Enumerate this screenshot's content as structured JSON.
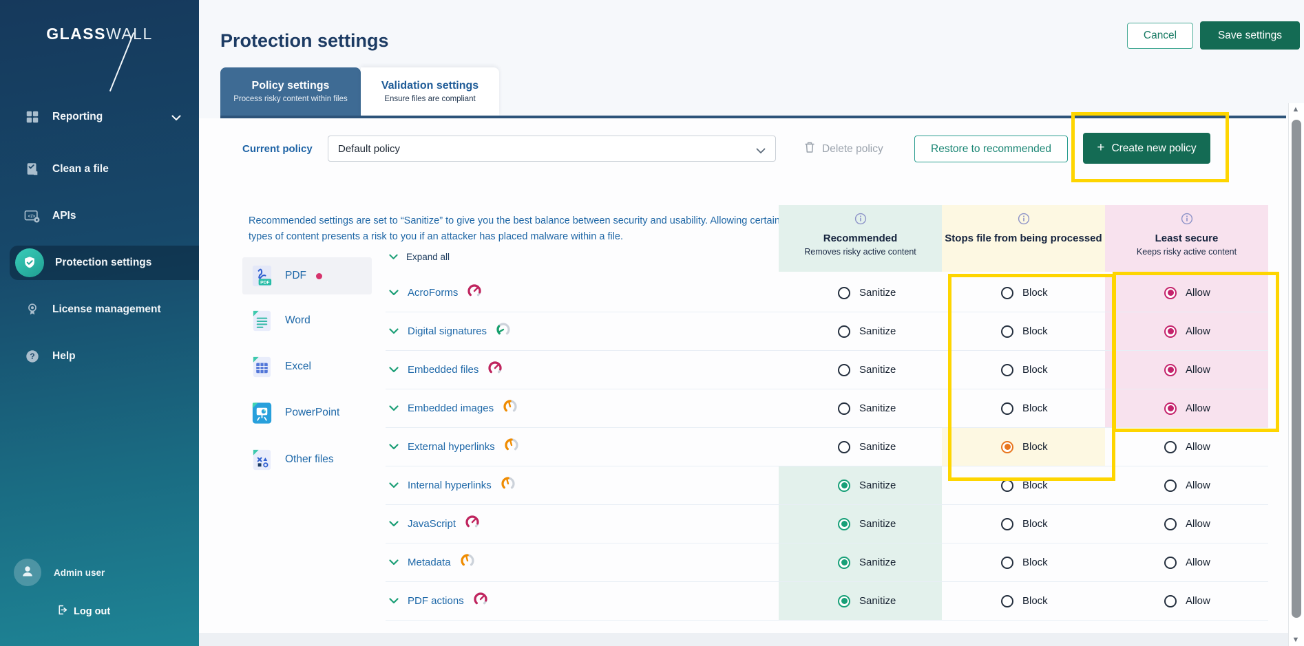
{
  "sidebar": {
    "logo": {
      "part_bold": "GLASS",
      "part_light": "WALL"
    },
    "items": [
      {
        "label": "Reporting",
        "icon": "grid-icon",
        "expandable": true,
        "active": false
      },
      {
        "label": "Clean a file",
        "icon": "clean-file-icon",
        "expandable": false,
        "active": false
      },
      {
        "label": "APIs",
        "icon": "api-icon",
        "expandable": false,
        "active": false
      },
      {
        "label": "Protection settings",
        "icon": "shield-icon",
        "expandable": false,
        "active": true
      },
      {
        "label": "License management",
        "icon": "license-icon",
        "expandable": false,
        "active": false
      },
      {
        "label": "Help",
        "icon": "help-icon",
        "expandable": false,
        "active": false
      }
    ],
    "user": {
      "name": "Admin user",
      "icon": "avatar-icon"
    },
    "logout": {
      "label": "Log out",
      "icon": "logout-icon"
    }
  },
  "header": {
    "title": "Protection settings",
    "cancel_label": "Cancel",
    "save_label": "Save settings"
  },
  "tabs": [
    {
      "label": "Policy settings",
      "subtitle": "Process risky content within files",
      "active": true
    },
    {
      "label": "Validation settings",
      "subtitle": "Ensure files are compliant",
      "active": false
    }
  ],
  "policy_bar": {
    "label": "Current policy",
    "selected_policy": "Default policy",
    "delete_label": "Delete policy",
    "delete_icon": "trash-icon",
    "restore_label": "Restore to recommended",
    "create_label": "Create new policy",
    "create_icon": "plus-icon"
  },
  "table": {
    "description": "Recommended settings are set to “Sanitize” to give you the best balance between security and usability. Allowing certain types of content presents a risk to you if an attacker has placed malware within a file.",
    "expand_all_label": "Expand all",
    "columns": [
      {
        "title": "Recommended",
        "subtitle": "Removes risky active content",
        "icon": "info-icon",
        "bg": "#e3f1ec"
      },
      {
        "title": "Stops file from being processed",
        "subtitle": "",
        "icon": "info-icon",
        "bg": "#fdf8e2"
      },
      {
        "title": "Least secure",
        "subtitle": "Keeps risky active content",
        "icon": "info-icon",
        "bg": "#f8e2ee"
      }
    ],
    "options": [
      "Sanitize",
      "Block",
      "Allow"
    ],
    "file_types": [
      {
        "label": "PDF",
        "icon": "pdf-file-icon",
        "selected": true,
        "unsaved_dot": true
      },
      {
        "label": "Word",
        "icon": "word-file-icon",
        "selected": false,
        "unsaved_dot": false
      },
      {
        "label": "Excel",
        "icon": "excel-file-icon",
        "selected": false,
        "unsaved_dot": false
      },
      {
        "label": "PowerPoint",
        "icon": "powerpoint-file-icon",
        "selected": false,
        "unsaved_dot": false
      },
      {
        "label": "Other files",
        "icon": "other-files-icon",
        "selected": false,
        "unsaved_dot": false
      }
    ],
    "rows": [
      {
        "label": "AcroForms",
        "risk": "high",
        "selected": "Allow"
      },
      {
        "label": "Digital signatures",
        "risk": "low",
        "selected": "Allow"
      },
      {
        "label": "Embedded files",
        "risk": "high",
        "selected": "Allow"
      },
      {
        "label": "Embedded images",
        "risk": "medium",
        "selected": "Allow"
      },
      {
        "label": "External hyperlinks",
        "risk": "medium",
        "selected": "Block"
      },
      {
        "label": "Internal hyperlinks",
        "risk": "medium",
        "selected": "Sanitize"
      },
      {
        "label": "JavaScript",
        "risk": "high",
        "selected": "Sanitize"
      },
      {
        "label": "Metadata",
        "risk": "medium",
        "selected": "Sanitize"
      },
      {
        "label": "PDF actions",
        "risk": "high",
        "selected": "Sanitize"
      }
    ]
  },
  "annotations": {
    "highlight_color": "#fed500",
    "boxes": [
      "create-new-policy-button",
      "block-column-rows-1-5",
      "allow-column-rows-1-4"
    ]
  },
  "colors": {
    "primary_green": "#146b54",
    "teal_outline": "#2a9d8f",
    "link_blue": "#1e68a8",
    "navy": "#1c3b63",
    "tab_active": "#3e6b94",
    "radio_sanitize": "#18a078",
    "radio_block": "#e8761e",
    "radio_allow": "#c4226b",
    "risk_high": "#c0245e",
    "risk_medium": "#f08c00",
    "risk_low": "#17a06d",
    "unsaved_dot": "#d6336c"
  }
}
